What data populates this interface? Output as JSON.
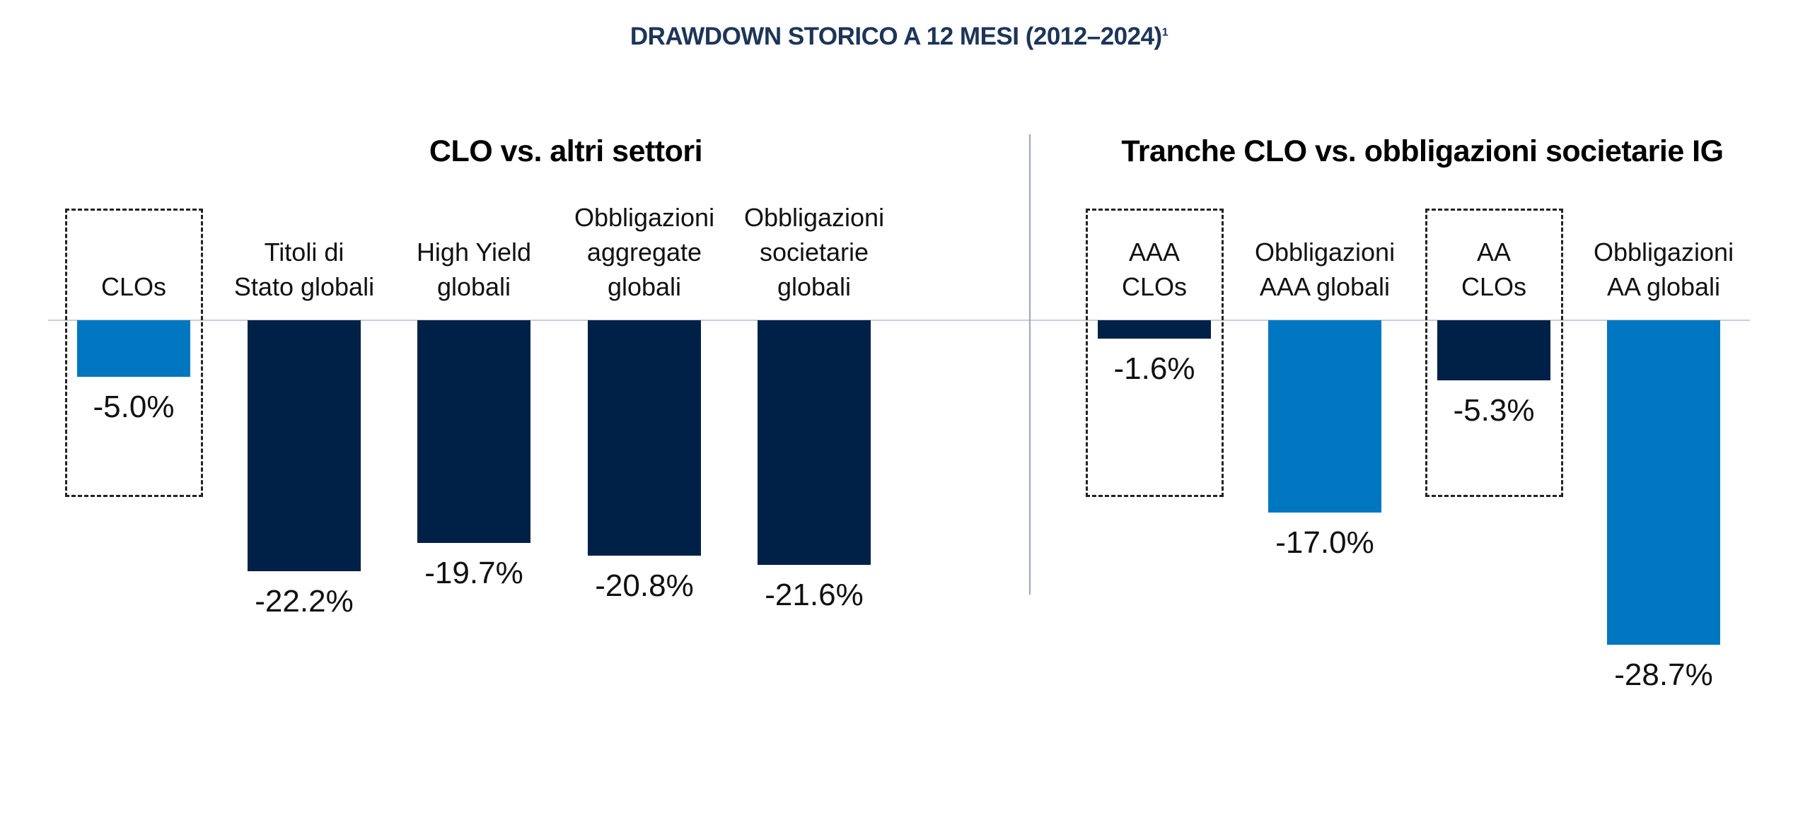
{
  "title": "DRAWDOWN STORICO A 12 MESI (2012–2024)",
  "title_note": "1",
  "chart_data": [
    {
      "type": "bar",
      "title": "CLO vs. altri settori",
      "categories": [
        "CLOs",
        "Titoli di\nStato globali",
        "High Yield\nglobali",
        "Obbligazioni\naggregate\nglobali",
        "Obbligazioni\nsocietarie\nglobali"
      ],
      "values": [
        -5.0,
        -22.2,
        -19.7,
        -20.8,
        -21.6
      ],
      "value_labels": [
        "-5.0%",
        "-22.2%",
        "-19.7%",
        "-20.8%",
        "-21.6%"
      ],
      "colors": [
        "#0077c0",
        "#002147",
        "#002147",
        "#002147",
        "#002147"
      ],
      "highlighted": [
        0
      ]
    },
    {
      "type": "bar",
      "title": "Tranche CLO vs. obbligazioni societarie IG",
      "categories": [
        "AAA\nCLOs",
        "Obbligazioni\nAAA globali",
        "AA\nCLOs",
        "Obbligazioni\nAA globali"
      ],
      "values": [
        -1.6,
        -17.0,
        -5.3,
        -28.7
      ],
      "value_labels": [
        "-1.6%",
        "-17.0%",
        "-5.3%",
        "-28.7%"
      ],
      "colors": [
        "#002147",
        "#0077c0",
        "#002147",
        "#0077c0"
      ],
      "highlighted": [
        0,
        2
      ]
    }
  ]
}
